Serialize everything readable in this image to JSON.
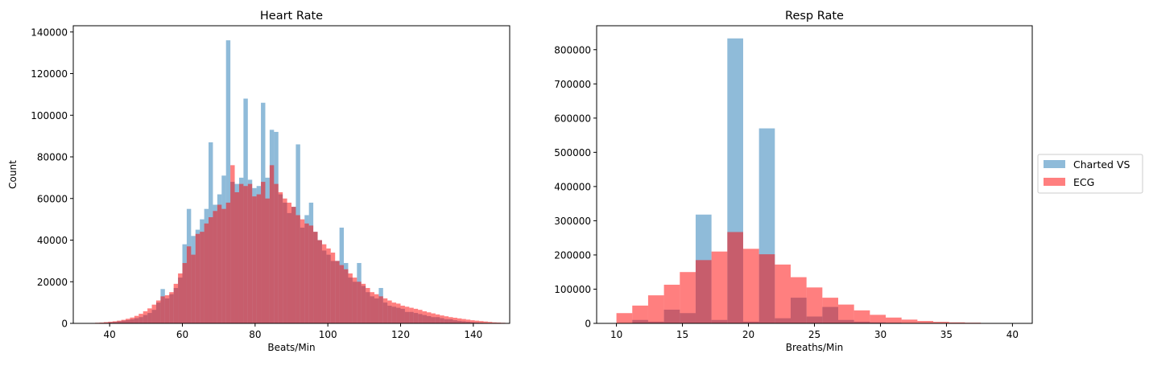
{
  "chart_data": [
    {
      "type": "bar",
      "title": "Heart Rate",
      "xlabel": "Beats/Min",
      "ylabel": "Count",
      "xlim": [
        30,
        150
      ],
      "ylim": [
        0,
        143000
      ],
      "xticks": [
        40,
        60,
        80,
        100,
        120,
        140
      ],
      "yticks": [
        0,
        20000,
        40000,
        60000,
        80000,
        100000,
        120000,
        140000
      ],
      "ytick_labels": [
        "0",
        "20000",
        "40000",
        "60000",
        "80000",
        "100000",
        "120000",
        "140000"
      ],
      "bin_width": 1.2,
      "bin_start": 30,
      "series": [
        {
          "name": "Charted VS",
          "color": "#1f77b4",
          "values": [
            0,
            0,
            0,
            0,
            0,
            100,
            200,
            300,
            500,
            700,
            1000,
            1300,
            1600,
            2000,
            2500,
            3000,
            4000,
            5000,
            6500,
            10000,
            16500,
            12000,
            14000,
            17000,
            22000,
            38000,
            55000,
            42000,
            45000,
            50000,
            55000,
            87000,
            57000,
            62000,
            71000,
            136000,
            68000,
            67000,
            70000,
            108000,
            69000,
            65000,
            66000,
            106000,
            70000,
            93000,
            92000,
            62000,
            58000,
            53000,
            56000,
            86000,
            46000,
            52000,
            58000,
            44000,
            40000,
            35000,
            33000,
            30000,
            30000,
            46000,
            29000,
            22000,
            20000,
            29000,
            18000,
            15000,
            13000,
            12000,
            17000,
            10000,
            8500,
            8000,
            7500,
            7000,
            5500,
            5500,
            5000,
            4500,
            4000,
            3500,
            3000,
            3000,
            2500,
            2000,
            2000,
            1500,
            1200,
            1000,
            800,
            600,
            400,
            300,
            200,
            100,
            0,
            0,
            0,
            0,
            0
          ]
        },
        {
          "name": "ECG",
          "color": "#ff0000",
          "values": [
            0,
            0,
            0,
            0,
            200,
            300,
            400,
            600,
            800,
            1000,
            1300,
            1700,
            2200,
            2800,
            3600,
            4600,
            5800,
            7200,
            9000,
            11000,
            13000,
            13500,
            15000,
            19000,
            24000,
            29000,
            37000,
            33000,
            43000,
            44000,
            48000,
            51000,
            54000,
            57000,
            55000,
            58000,
            76000,
            63000,
            67000,
            66000,
            67000,
            61000,
            62000,
            68000,
            60000,
            76000,
            67000,
            63000,
            60000,
            58000,
            56000,
            52000,
            50000,
            48000,
            47000,
            44000,
            40000,
            38000,
            36000,
            34000,
            30000,
            28000,
            26000,
            24000,
            22000,
            20000,
            19000,
            17000,
            15000,
            14000,
            13000,
            12000,
            11000,
            10000,
            9500,
            8500,
            8000,
            7500,
            7000,
            6500,
            5800,
            5300,
            4800,
            4300,
            3800,
            3400,
            3000,
            2700,
            2400,
            2100,
            1800,
            1500,
            1300,
            1100,
            900,
            700,
            500,
            400,
            300,
            200,
            100
          ]
        }
      ]
    },
    {
      "type": "bar",
      "title": "Resp Rate",
      "xlabel": "Breaths/Min",
      "ylabel": "",
      "xlim": [
        8.5,
        41.5
      ],
      "ylim": [
        0,
        870000
      ],
      "xticks": [
        10,
        15,
        20,
        25,
        30,
        35,
        40
      ],
      "yticks": [
        0,
        100000,
        200000,
        300000,
        400000,
        500000,
        600000,
        700000,
        800000
      ],
      "ytick_labels": [
        "0",
        "100000",
        "200000",
        "300000",
        "400000",
        "500000",
        "600000",
        "700000",
        "800000"
      ],
      "bin_width": 1.2,
      "bin_start": 10,
      "series": [
        {
          "name": "Charted VS",
          "color": "#1f77b4",
          "values": [
            0,
            10000,
            5000,
            40000,
            30000,
            318000,
            10000,
            833000,
            5000,
            570000,
            15000,
            75000,
            20000,
            48000,
            10000,
            5000,
            3000,
            2000,
            1000,
            500,
            0,
            0,
            0,
            0,
            0
          ]
        },
        {
          "name": "ECG",
          "color": "#ff0000",
          "values": [
            30000,
            52000,
            82000,
            113000,
            150000,
            185000,
            210000,
            267000,
            218000,
            202000,
            172000,
            135000,
            105000,
            75000,
            55000,
            38000,
            25000,
            17000,
            11000,
            7000,
            4500,
            3000,
            2000,
            1200,
            800
          ]
        }
      ]
    }
  ],
  "legend": {
    "placement": "right",
    "entries": [
      "Charted VS",
      "ECG"
    ]
  }
}
